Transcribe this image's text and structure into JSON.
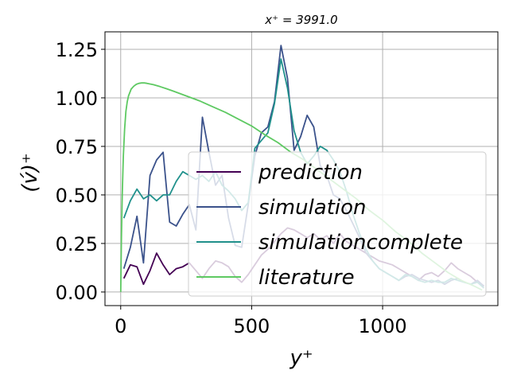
{
  "chart_data": {
    "type": "line",
    "title": "x⁺ = 3991.0",
    "xlabel": "y⁺",
    "ylabel": "(v́)⁺",
    "xlim": [
      -60,
      1440
    ],
    "ylim": [
      -0.07,
      1.34
    ],
    "xticks": [
      0,
      500,
      1000
    ],
    "xtick_labels": [
      "0",
      "500",
      "1000"
    ],
    "yticks": [
      0.0,
      0.25,
      0.5,
      0.75,
      1.0,
      1.25
    ],
    "ytick_labels": [
      "0.00",
      "0.25",
      "0.50",
      "0.75",
      "1.00",
      "1.25"
    ],
    "grid": true,
    "legend_position": "lower-right",
    "series": [
      {
        "name": "prediction",
        "color": "#440154",
        "x": [
          12,
          37,
          62,
          87,
          112,
          137,
          162,
          187,
          212,
          237,
          262,
          287,
          312,
          337,
          362,
          387,
          412,
          437,
          462,
          487,
          512,
          537,
          562,
          587,
          612,
          637,
          662,
          687,
          712,
          737,
          762,
          787,
          812,
          837,
          862,
          887,
          912,
          937,
          962,
          987,
          1012,
          1037,
          1062,
          1087,
          1112,
          1137,
          1162,
          1187,
          1212,
          1237,
          1262,
          1287,
          1312,
          1337,
          1362,
          1387
        ],
        "y": [
          0.07,
          0.14,
          0.13,
          0.04,
          0.11,
          0.2,
          0.14,
          0.09,
          0.12,
          0.13,
          0.15,
          0.11,
          0.07,
          0.12,
          0.16,
          0.15,
          0.13,
          0.08,
          0.05,
          0.09,
          0.14,
          0.19,
          0.22,
          0.26,
          0.3,
          0.33,
          0.32,
          0.3,
          0.28,
          0.3,
          0.27,
          0.29,
          0.25,
          0.3,
          0.26,
          0.24,
          0.22,
          0.2,
          0.18,
          0.16,
          0.15,
          0.14,
          0.12,
          0.1,
          0.08,
          0.06,
          0.09,
          0.1,
          0.08,
          0.11,
          0.15,
          0.12,
          0.1,
          0.08,
          0.05,
          0.03
        ]
      },
      {
        "name": "simulation",
        "color": "#3b528b",
        "x": [
          12,
          37,
          62,
          87,
          112,
          137,
          162,
          187,
          212,
          237,
          262,
          287,
          312,
          337,
          362,
          387,
          412,
          437,
          462,
          487,
          512,
          537,
          562,
          587,
          612,
          637,
          662,
          687,
          712,
          737,
          762,
          787,
          812,
          837,
          862,
          887,
          912,
          937,
          962,
          987,
          1012,
          1037,
          1062,
          1087,
          1112,
          1137,
          1162,
          1187,
          1212,
          1237,
          1262,
          1287,
          1312,
          1337,
          1362,
          1387
        ],
        "y": [
          0.12,
          0.23,
          0.39,
          0.15,
          0.6,
          0.68,
          0.72,
          0.36,
          0.34,
          0.4,
          0.45,
          0.32,
          0.9,
          0.72,
          0.55,
          0.6,
          0.38,
          0.24,
          0.23,
          0.45,
          0.7,
          0.82,
          0.85,
          0.98,
          1.27,
          1.1,
          0.73,
          0.8,
          0.91,
          0.85,
          0.65,
          0.6,
          0.5,
          0.48,
          0.42,
          0.35,
          0.28,
          0.2,
          0.16,
          0.12,
          0.1,
          0.08,
          0.06,
          0.08,
          0.09,
          0.07,
          0.06,
          0.05,
          0.06,
          0.04,
          0.06,
          0.07,
          0.05,
          0.04,
          0.06,
          0.03
        ]
      },
      {
        "name": "simulationcomplete",
        "color": "#21918c",
        "x": [
          12,
          37,
          62,
          87,
          112,
          137,
          162,
          187,
          212,
          237,
          262,
          287,
          312,
          337,
          362,
          387,
          412,
          437,
          462,
          487,
          512,
          537,
          562,
          587,
          612,
          637,
          662,
          687,
          712,
          737,
          762,
          787,
          812,
          837,
          862,
          887,
          912,
          937,
          962,
          987,
          1012,
          1037,
          1062,
          1087,
          1112,
          1137,
          1162,
          1187,
          1212,
          1237,
          1262,
          1287,
          1312,
          1337,
          1362,
          1387
        ],
        "y": [
          0.38,
          0.47,
          0.53,
          0.48,
          0.5,
          0.47,
          0.5,
          0.5,
          0.57,
          0.62,
          0.6,
          0.58,
          0.6,
          0.57,
          0.62,
          0.55,
          0.52,
          0.48,
          0.42,
          0.46,
          0.74,
          0.78,
          0.82,
          0.97,
          1.2,
          1.05,
          0.83,
          0.72,
          0.66,
          0.7,
          0.75,
          0.73,
          0.68,
          0.62,
          0.52,
          0.4,
          0.3,
          0.22,
          0.16,
          0.12,
          0.1,
          0.08,
          0.06,
          0.09,
          0.08,
          0.06,
          0.05,
          0.06,
          0.05,
          0.05,
          0.07,
          0.06,
          0.05,
          0.04,
          0.05,
          0.02
        ]
      },
      {
        "name": "literature",
        "color": "#5ec962",
        "x": [
          0,
          3,
          6,
          10,
          15,
          20,
          25,
          30,
          40,
          50,
          60,
          70,
          80,
          90,
          100,
          125,
          150,
          175,
          200,
          250,
          300,
          350,
          400,
          450,
          500,
          550,
          600,
          650,
          700,
          750,
          800,
          850,
          900,
          950,
          1000,
          1050,
          1100,
          1150,
          1200,
          1250,
          1300,
          1350,
          1380
        ],
        "y": [
          0.0,
          0.28,
          0.5,
          0.7,
          0.84,
          0.93,
          0.98,
          1.01,
          1.045,
          1.06,
          1.07,
          1.075,
          1.077,
          1.077,
          1.075,
          1.068,
          1.058,
          1.047,
          1.035,
          1.01,
          0.985,
          0.955,
          0.925,
          0.89,
          0.855,
          0.81,
          0.77,
          0.72,
          0.68,
          0.63,
          0.58,
          0.53,
          0.48,
          0.42,
          0.37,
          0.31,
          0.26,
          0.2,
          0.15,
          0.1,
          0.06,
          0.03,
          0.01
        ]
      }
    ]
  }
}
